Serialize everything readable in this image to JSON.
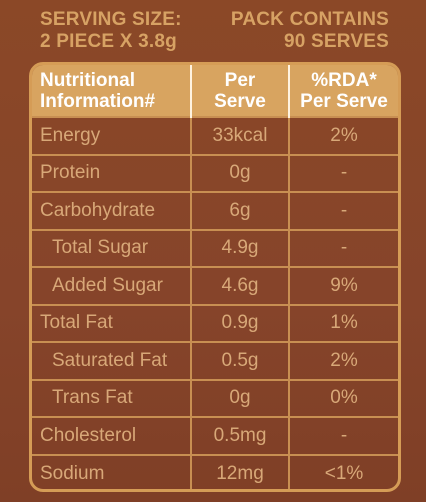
{
  "serving": {
    "left_line1": "SERVING SIZE:",
    "left_line2": "2 PIECE X 3.8g",
    "right_line1": "PACK CONTAINS",
    "right_line2": "90 SERVES"
  },
  "table": {
    "headers": {
      "col1_line1": "Nutritional",
      "col1_line2": "Information#",
      "col2_line1": "Per",
      "col2_line2": "Serve",
      "col3_line1": "%RDA*",
      "col3_line2": "Per Serve"
    },
    "rows": [
      {
        "nutrient": "Energy",
        "per_serve": "33kcal",
        "rda": "2%"
      },
      {
        "nutrient": "Protein",
        "per_serve": "0g",
        "rda": "-"
      },
      {
        "nutrient": "Carbohydrate",
        "per_serve": "6g",
        "rda": "-"
      },
      {
        "nutrient": "Total Sugar",
        "per_serve": "4.9g",
        "rda": "-"
      },
      {
        "nutrient": "Added Sugar",
        "per_serve": "4.6g",
        "rda": "9%"
      },
      {
        "nutrient": "Total Fat",
        "per_serve": "0.9g",
        "rda": "1%"
      },
      {
        "nutrient": "Saturated Fat",
        "per_serve": "0.5g",
        "rda": "2%"
      },
      {
        "nutrient": "Trans Fat",
        "per_serve": "0g",
        "rda": "0%"
      },
      {
        "nutrient": "Cholesterol",
        "per_serve": "0.5mg",
        "rda": "-"
      },
      {
        "nutrient": "Sodium",
        "per_serve": "12mg",
        "rda": "<1%"
      }
    ]
  },
  "colors": {
    "background": "#8a4727",
    "accent": "#d8a460",
    "text": "#d8a878",
    "header_text": "#ffffff"
  }
}
